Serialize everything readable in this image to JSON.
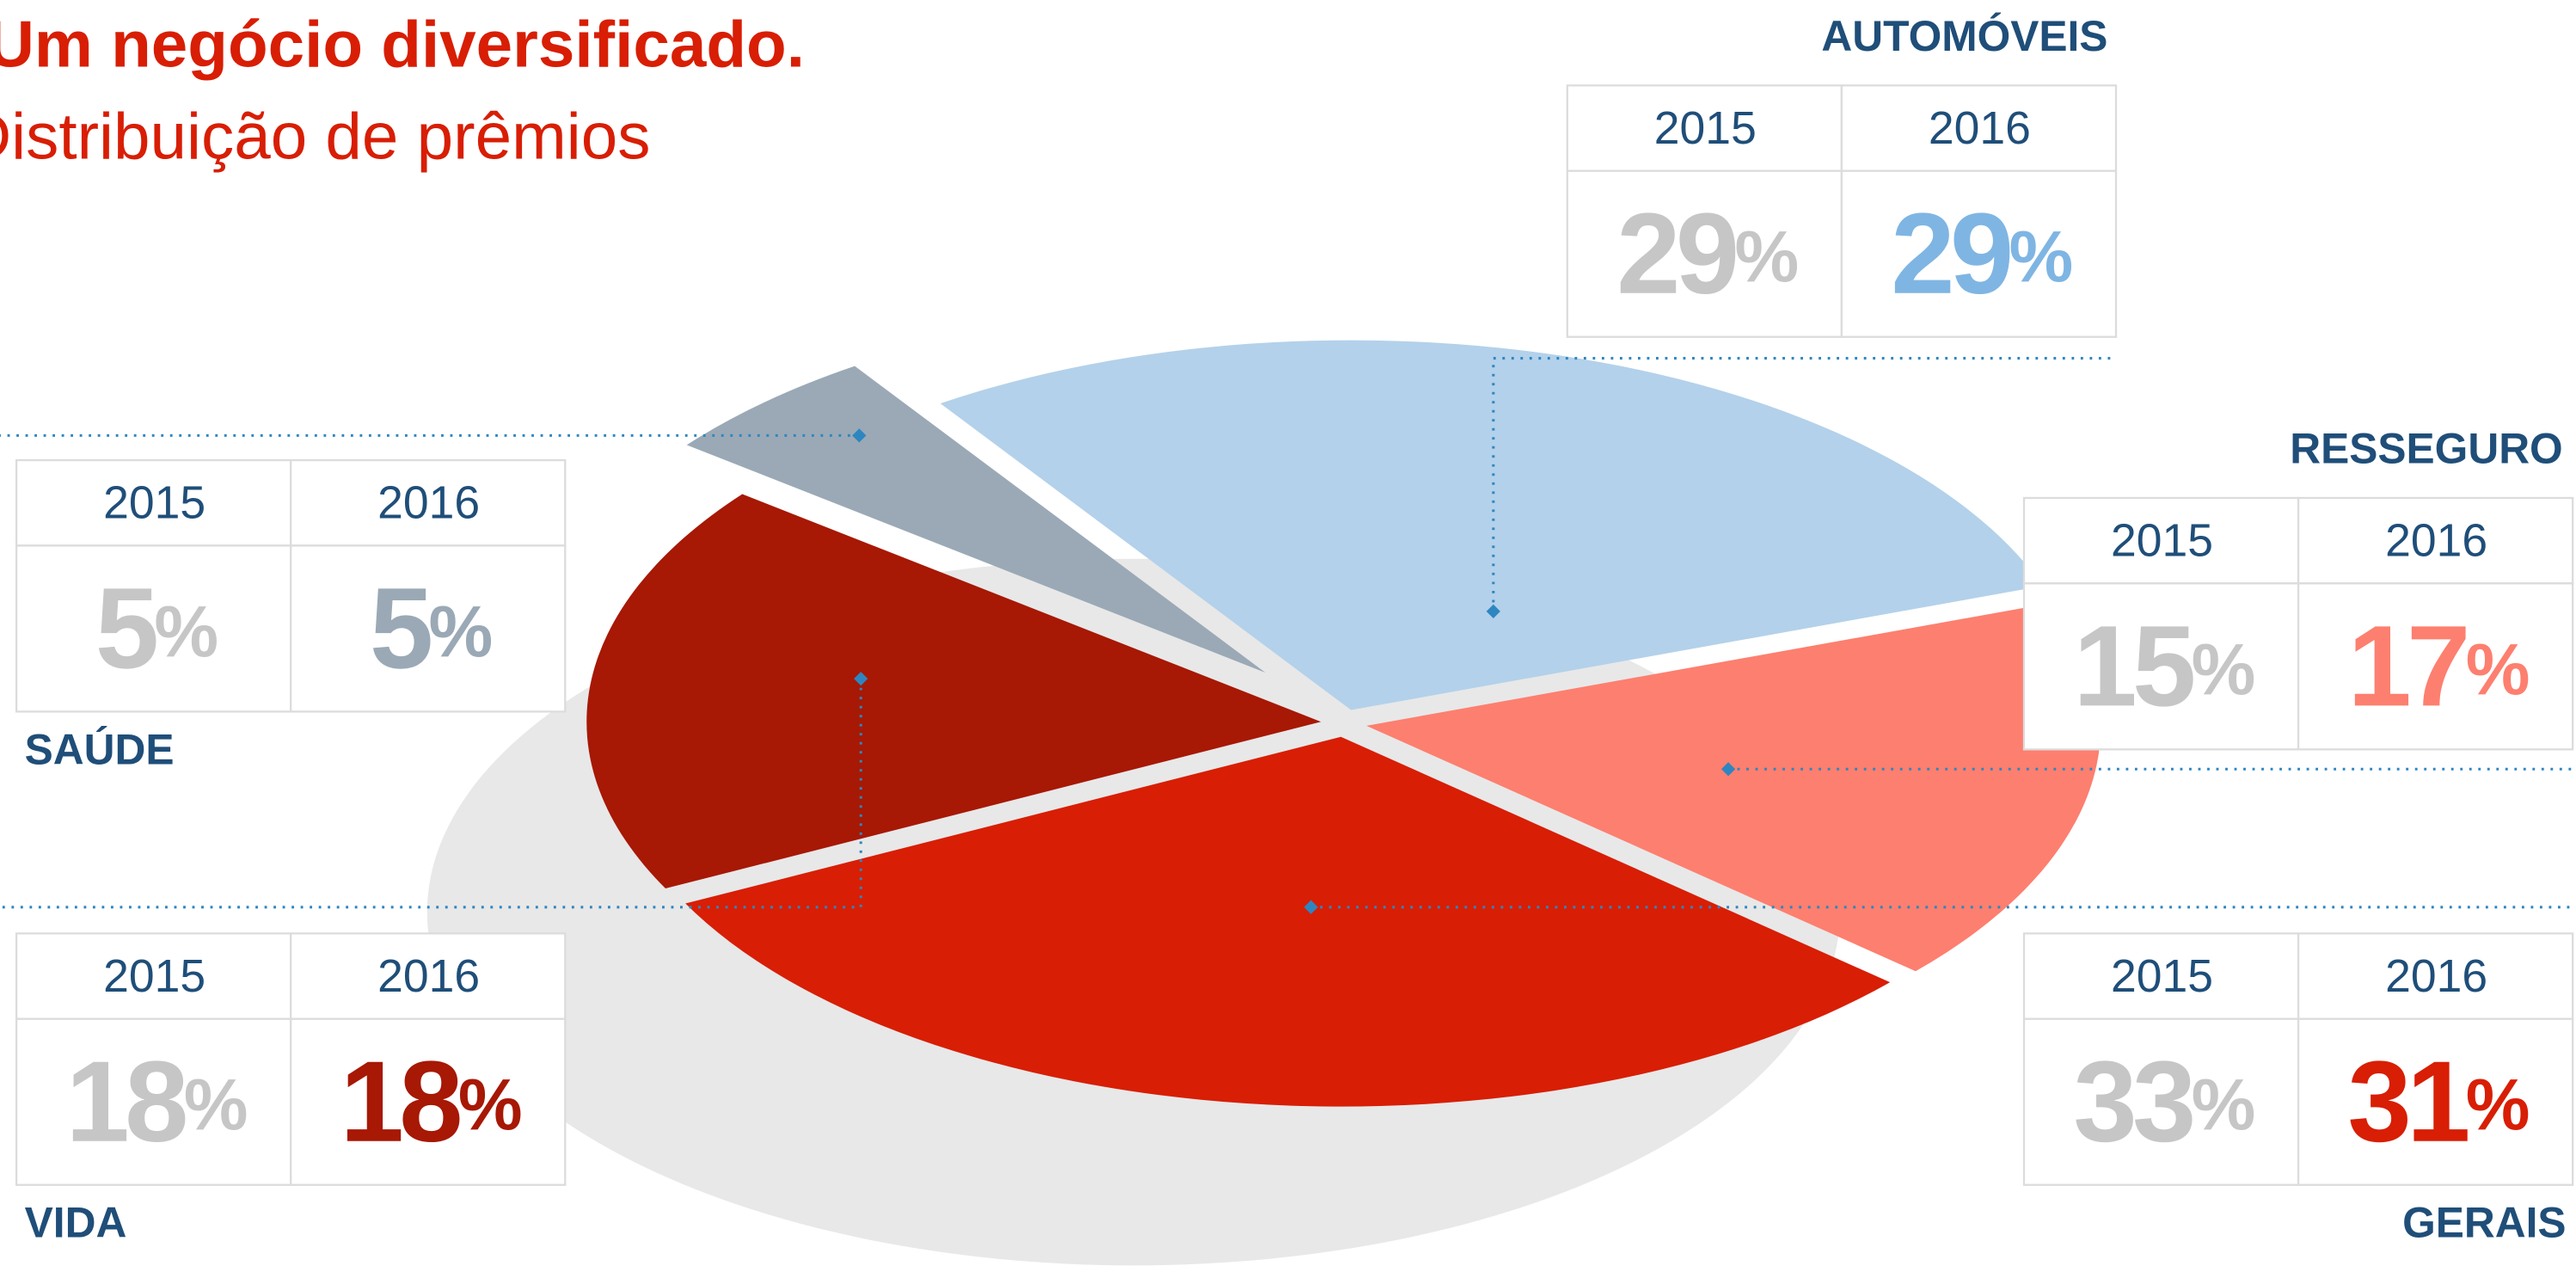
{
  "chart_data": {
    "type": "pie",
    "title": "Um negócio diversificado.",
    "subtitle": "Distribuição de prêmios",
    "categories": [
      "AUTOMÓVEIS",
      "RESSEGURO",
      "GERAIS",
      "VIDA",
      "SAÚDE"
    ],
    "colors": [
      "#b3d1ea",
      "#fd7f6f",
      "#d81e05",
      "#a71805",
      "#9aa9b5"
    ],
    "label_colors": [
      "#7fb5e3",
      "#fd7f6f",
      "#d81e05",
      "#a71805",
      "#9aa9b5"
    ],
    "unit": "%",
    "series": [
      {
        "name": "2015",
        "color": "#c6c6c6",
        "values": [
          29,
          15,
          33,
          18,
          5
        ]
      },
      {
        "name": "2016",
        "values": [
          29,
          17,
          31,
          18,
          5
        ]
      }
    ]
  }
}
